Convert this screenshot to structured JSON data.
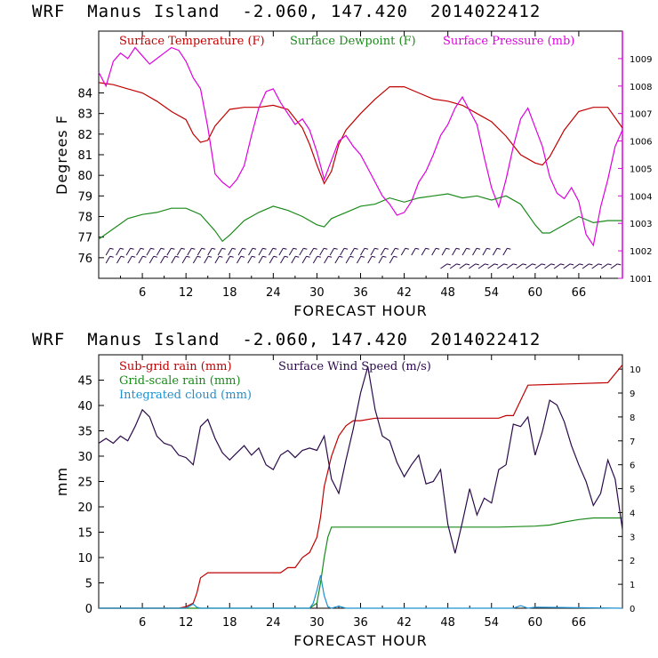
{
  "header_top": {
    "model": "WRF",
    "location": "Manus Island",
    "coords": "-2.060, 147.420",
    "init": "2014022412"
  },
  "header_bottom": {
    "model": "WRF",
    "location": "Manus Island",
    "coords": "-2.060, 147.420",
    "init": "2014022412"
  },
  "colors": {
    "temperature": "#c00000",
    "dewpoint": "#1a8a1a",
    "pressure": "#e000e0",
    "wind": "#2a0a4a",
    "subgrid": "#c00000",
    "gridscale": "#1a8a1a",
    "cloud": "#1e90d0"
  },
  "chart_data": [
    {
      "type": "line",
      "title": "",
      "xlabel": "FORECAST HOUR",
      "ylabel": "Degrees F",
      "xlim": [
        0,
        72
      ],
      "ylim": [
        75,
        87
      ],
      "y2lim": [
        1001,
        1010
      ],
      "xticks": [
        "6",
        "12",
        "18",
        "24",
        "30",
        "36",
        "42",
        "48",
        "54",
        "60",
        "66"
      ],
      "yticks": [
        "76",
        "77",
        "78",
        "79",
        "80",
        "81",
        "82",
        "83",
        "84"
      ],
      "y2ticks": [
        "1001",
        "1002",
        "1003",
        "1004",
        "1005",
        "1006",
        "1007",
        "1008",
        "1009"
      ],
      "series": [
        {
          "name": "Surface Temperature (F)",
          "axis": "left",
          "x": [
            0,
            2,
            4,
            6,
            8,
            10,
            12,
            13,
            14,
            15,
            16,
            18,
            20,
            22,
            24,
            26,
            28,
            29,
            30,
            31,
            32,
            33,
            34,
            36,
            38,
            40,
            42,
            44,
            46,
            48,
            50,
            52,
            54,
            56,
            58,
            60,
            61,
            62,
            64,
            66,
            68,
            70,
            72
          ],
          "values": [
            84.5,
            84.4,
            84.2,
            84.0,
            83.6,
            83.1,
            82.7,
            82.0,
            81.6,
            81.7,
            82.4,
            83.2,
            83.3,
            83.3,
            83.4,
            83.2,
            82.3,
            81.5,
            80.5,
            79.6,
            80.2,
            81.5,
            82.2,
            83.0,
            83.7,
            84.3,
            84.3,
            84.0,
            83.7,
            83.6,
            83.4,
            83.0,
            82.6,
            81.9,
            81.0,
            80.6,
            80.5,
            80.9,
            82.2,
            83.1,
            83.3,
            83.3,
            82.3
          ]
        },
        {
          "name": "Surface Dewpoint (F)",
          "axis": "left",
          "x": [
            0,
            2,
            4,
            6,
            8,
            10,
            12,
            14,
            16,
            17,
            18,
            20,
            22,
            24,
            26,
            28,
            30,
            31,
            32,
            34,
            36,
            38,
            40,
            42,
            44,
            46,
            48,
            50,
            52,
            54,
            56,
            58,
            60,
            61,
            62,
            64,
            66,
            68,
            70,
            72
          ],
          "values": [
            76.9,
            77.4,
            77.9,
            78.1,
            78.2,
            78.4,
            78.4,
            78.1,
            77.3,
            76.8,
            77.1,
            77.8,
            78.2,
            78.5,
            78.3,
            78.0,
            77.6,
            77.5,
            77.9,
            78.2,
            78.5,
            78.6,
            78.9,
            78.7,
            78.9,
            79.0,
            79.1,
            78.9,
            79.0,
            78.8,
            79.0,
            78.6,
            77.6,
            77.2,
            77.2,
            77.6,
            78.0,
            77.7,
            77.8,
            77.8
          ]
        },
        {
          "name": "Surface Pressure (mb)",
          "axis": "right",
          "x": [
            0,
            1,
            2,
            3,
            4,
            5,
            6,
            7,
            8,
            9,
            10,
            11,
            12,
            13,
            14,
            15,
            16,
            17,
            18,
            19,
            20,
            21,
            22,
            23,
            24,
            25,
            26,
            27,
            28,
            29,
            30,
            31,
            32,
            33,
            34,
            35,
            36,
            37,
            38,
            39,
            40,
            41,
            42,
            43,
            44,
            45,
            46,
            47,
            48,
            49,
            50,
            51,
            52,
            53,
            54,
            55,
            56,
            57,
            58,
            59,
            60,
            61,
            62,
            63,
            64,
            65,
            66,
            67,
            68,
            69,
            70,
            71,
            72
          ],
          "values": [
            1008.5,
            1008.0,
            1008.9,
            1009.2,
            1009.0,
            1009.4,
            1009.1,
            1008.8,
            1009.0,
            1009.2,
            1009.4,
            1009.3,
            1008.9,
            1008.3,
            1007.9,
            1006.5,
            1004.8,
            1004.5,
            1004.3,
            1004.6,
            1005.1,
            1006.2,
            1007.2,
            1007.8,
            1007.9,
            1007.4,
            1007.0,
            1006.6,
            1006.8,
            1006.4,
            1005.6,
            1004.6,
            1005.3,
            1006.0,
            1006.2,
            1005.8,
            1005.5,
            1005.0,
            1004.5,
            1004.0,
            1003.7,
            1003.3,
            1003.4,
            1003.8,
            1004.5,
            1004.9,
            1005.5,
            1006.2,
            1006.6,
            1007.2,
            1007.6,
            1007.1,
            1006.6,
            1005.4,
            1004.3,
            1003.6,
            1004.6,
            1005.8,
            1006.8,
            1007.2,
            1006.5,
            1005.8,
            1004.7,
            1004.1,
            1003.9,
            1004.3,
            1003.8,
            1002.6,
            1002.2,
            1003.6,
            1004.6,
            1005.8,
            1006.4
          ]
        }
      ],
      "wind_barbs": "Surface wind barbs along bottom of panel"
    },
    {
      "type": "line",
      "title": "",
      "xlabel": "FORECAST HOUR",
      "ylabel": "mm",
      "xlim": [
        0,
        72
      ],
      "ylim": [
        0,
        50
      ],
      "y2lim": [
        0,
        10.6
      ],
      "xticks": [
        "6",
        "12",
        "18",
        "24",
        "30",
        "36",
        "42",
        "48",
        "54",
        "60",
        "66"
      ],
      "yticks": [
        "0",
        "5",
        "10",
        "15",
        "20",
        "25",
        "30",
        "35",
        "40",
        "45"
      ],
      "y2ticks": [
        "0",
        "1",
        "2",
        "3",
        "4",
        "5",
        "6",
        "7",
        "8",
        "9",
        "10"
      ],
      "series": [
        {
          "name": "Sub-grid rain (mm)",
          "axis": "left",
          "x": [
            0,
            11,
            12,
            13,
            13.5,
            14,
            15,
            24,
            25,
            26,
            27,
            28,
            29,
            30,
            30.5,
            31,
            32,
            33,
            34,
            35,
            36,
            38,
            45,
            50,
            55,
            56,
            57,
            58,
            59,
            70,
            72
          ],
          "values": [
            0,
            0,
            0.3,
            1,
            3,
            6,
            7,
            7,
            7,
            8,
            8,
            10,
            11,
            14,
            18,
            24,
            30,
            34,
            36,
            37,
            37,
            37.5,
            37.5,
            37.5,
            37.5,
            38,
            38,
            41,
            44,
            44.5,
            48
          ]
        },
        {
          "name": "Grid-scale rain (mm)",
          "axis": "left",
          "x": [
            0,
            29,
            30,
            30.5,
            31,
            31.5,
            32,
            40,
            55,
            60,
            62,
            64,
            66,
            68,
            72
          ],
          "values": [
            0,
            0,
            1,
            5,
            10,
            14,
            16,
            16,
            16,
            16.2,
            16.4,
            17,
            17.5,
            17.8,
            17.8
          ]
        },
        {
          "name": "Integrated cloud (mm)",
          "axis": "left",
          "x": [
            0,
            12,
            13,
            13.5,
            14,
            29,
            29.5,
            30,
            30.5,
            31,
            31.5,
            32,
            33,
            34,
            57,
            58,
            59,
            60,
            72
          ],
          "values": [
            0,
            0,
            0.8,
            0.2,
            0,
            0,
            1,
            3.5,
            6.5,
            2.5,
            0.3,
            0,
            0.4,
            0,
            0,
            0.5,
            0,
            0.2,
            0
          ]
        },
        {
          "name": "Surface Wind Speed (m/s)",
          "axis": "right",
          "x": [
            0,
            1,
            2,
            3,
            4,
            5,
            6,
            7,
            8,
            9,
            10,
            11,
            12,
            13,
            14,
            15,
            16,
            17,
            18,
            19,
            20,
            21,
            22,
            23,
            24,
            25,
            26,
            27,
            28,
            29,
            30,
            31,
            32,
            33,
            34,
            35,
            36,
            37,
            38,
            39,
            40,
            41,
            42,
            43,
            44,
            45,
            46,
            47,
            48,
            49,
            50,
            51,
            52,
            53,
            54,
            55,
            56,
            57,
            58,
            59,
            60,
            61,
            62,
            63,
            64,
            65,
            66,
            67,
            68,
            69,
            70,
            71,
            72
          ],
          "values": [
            6.9,
            7.1,
            6.9,
            7.2,
            7.0,
            7.6,
            8.3,
            8.0,
            7.2,
            6.9,
            6.8,
            6.4,
            6.3,
            6.0,
            7.6,
            7.9,
            7.1,
            6.5,
            6.2,
            6.5,
            6.8,
            6.4,
            6.7,
            6.0,
            5.8,
            6.4,
            6.6,
            6.3,
            6.6,
            6.7,
            6.6,
            7.2,
            5.4,
            4.8,
            6.2,
            7.5,
            9.0,
            10.1,
            8.3,
            7.2,
            7.0,
            6.1,
            5.5,
            6.0,
            6.4,
            5.2,
            5.3,
            5.8,
            3.5,
            2.3,
            3.6,
            5.0,
            3.9,
            4.6,
            4.4,
            5.8,
            6.0,
            7.7,
            7.6,
            8.0,
            6.4,
            7.4,
            8.7,
            8.5,
            7.8,
            6.8,
            6.0,
            5.3,
            4.3,
            4.8,
            6.2,
            5.4,
            3.3
          ]
        }
      ]
    }
  ]
}
